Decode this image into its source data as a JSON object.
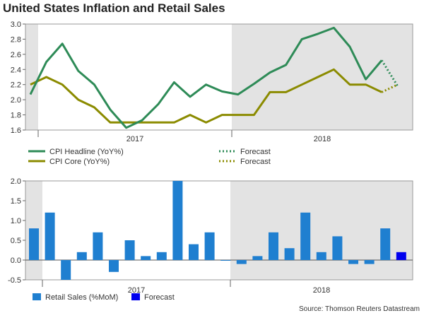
{
  "title": "United States Inflation and Retail Sales",
  "source": "Source: Thomson Reuters Datastream",
  "colors": {
    "headline": "#2e8b57",
    "core": "#8b8b00",
    "retail": "#1f7fd0",
    "retail_forecast": "#0000ee",
    "shade": "#e3e3e3"
  },
  "chart_data": [
    {
      "type": "line",
      "ylim": [
        1.6,
        3.0
      ],
      "yticks": [
        "3.0",
        "2.8",
        "2.6",
        "2.4",
        "2.2",
        "2.0",
        "1.8",
        "1.6"
      ],
      "year_labels": [
        "2017",
        "2018"
      ],
      "series": [
        {
          "name": "CPI Headline (YoY%)",
          "values": [
            2.07,
            2.5,
            2.74,
            2.38,
            2.2,
            1.87,
            1.63,
            1.73,
            1.94,
            2.23,
            2.04,
            2.2,
            2.11,
            2.07,
            2.21,
            2.36,
            2.46,
            2.8,
            2.87,
            2.95,
            2.7,
            2.27,
            2.52
          ],
          "forecast": [
            2.52,
            2.18
          ]
        },
        {
          "name": "CPI Core (YoY%)",
          "values": [
            2.2,
            2.3,
            2.2,
            2.0,
            1.9,
            1.7,
            1.7,
            1.7,
            1.7,
            1.7,
            1.8,
            1.7,
            1.8,
            1.8,
            1.8,
            2.1,
            2.1,
            2.2,
            2.3,
            2.4,
            2.2,
            2.2,
            2.1
          ],
          "forecast": [
            2.1,
            2.2
          ]
        }
      ],
      "legend": [
        {
          "label": "CPI Headline (YoY%)",
          "key": "headline",
          "style": "solid"
        },
        {
          "label": "CPI Core (YoY%)",
          "key": "core",
          "style": "solid"
        },
        {
          "label": "Forecast",
          "key": "headline",
          "style": "dotted"
        },
        {
          "label": "Forecast",
          "key": "core",
          "style": "dotted"
        }
      ]
    },
    {
      "type": "bar",
      "ylim": [
        -0.5,
        2.0
      ],
      "yticks": [
        "2.0",
        "1.5",
        "1.0",
        "0.5",
        "0.0",
        "-0.5"
      ],
      "year_labels": [
        "2017",
        "2018"
      ],
      "series": [
        {
          "name": "Retail Sales (%MoM)",
          "values": [
            0.8,
            1.2,
            -0.5,
            0.2,
            0.7,
            -0.3,
            0.5,
            0.1,
            0.2,
            2.0,
            0.4,
            0.7,
            0.0,
            -0.1,
            0.1,
            0.7,
            0.3,
            1.2,
            0.2,
            0.6,
            -0.1,
            -0.1,
            0.8
          ]
        },
        {
          "name": "Forecast",
          "values": [
            0.2
          ]
        }
      ],
      "legend": [
        {
          "label": "Retail Sales (%MoM)",
          "key": "retail"
        },
        {
          "label": "Forecast",
          "key": "retail_forecast"
        }
      ]
    }
  ]
}
